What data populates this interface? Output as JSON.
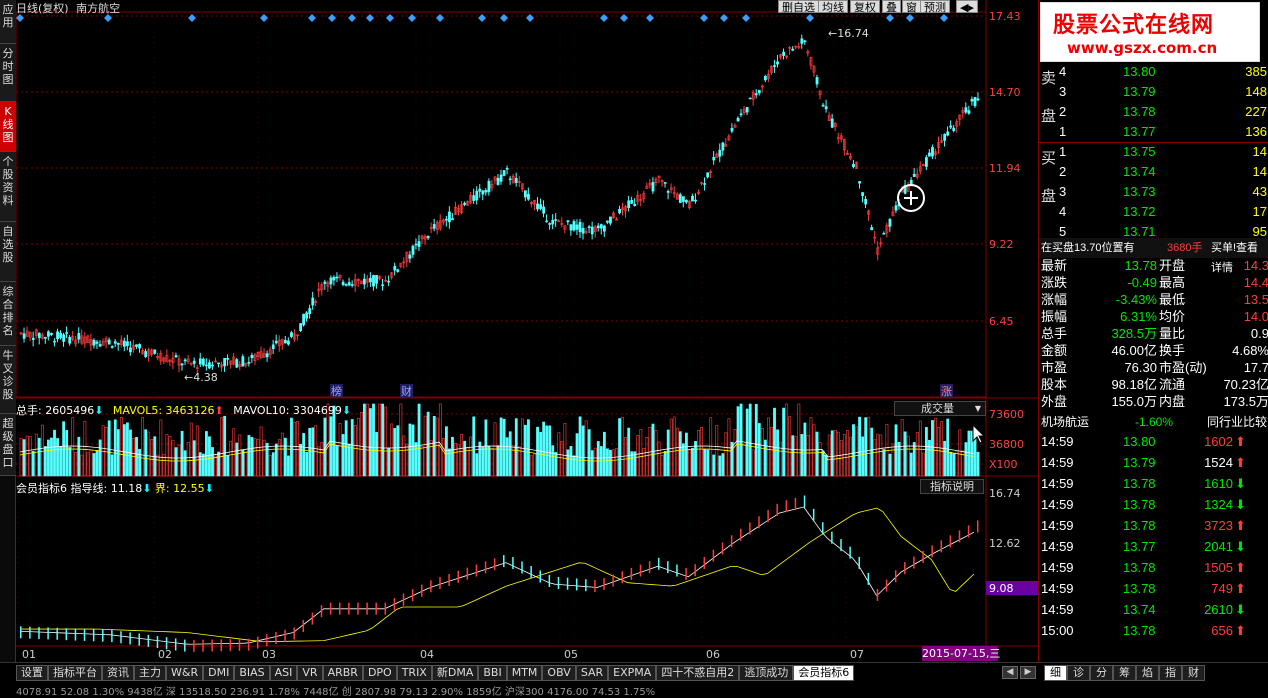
{
  "left_toolbar": [
    "应用",
    "分时图",
    "K线图",
    "个股资料",
    "自选股",
    "综合排名",
    "牛叉诊股",
    "超级盘口"
  ],
  "top": {
    "title": "日线(复权)",
    "stock": "南方航空",
    "buttons": [
      "删自选",
      "均线",
      "复权",
      "叠",
      "窗",
      "预测"
    ]
  },
  "chart_data": {
    "type": "candlestick",
    "price_axis": [
      "17.43",
      "14.70",
      "11.94",
      "9.22",
      "6.45"
    ],
    "months": [
      "01",
      "02",
      "03",
      "04",
      "05",
      "06",
      "07"
    ],
    "high_label": "16.74",
    "low_label": "4.38",
    "event_markers": [
      "榜",
      "财",
      "涨"
    ],
    "volume": {
      "label": "总手: 2605496",
      "ma5": "MAVOL5: 3463126",
      "ma10": "MAVOL10: 3304699",
      "axis": [
        "73600",
        "36800",
        "X100"
      ],
      "dropdown": "成交量"
    },
    "indicator": {
      "label": "会员指标6",
      "guide": "指导线: 11.18",
      "bound": "界: 12.55",
      "axis": [
        "16.74",
        "12.62",
        "9.08"
      ],
      "button": "指标说明",
      "label_marker": "8"
    },
    "date_label": "2015-07-15,三"
  },
  "right": {
    "logo": "股票公式在线网",
    "logo_url": "www.gszx.com.cn",
    "sell_label": "卖盘",
    "buy_label": "买盘",
    "sell": [
      [
        "4",
        "13.80",
        "385"
      ],
      [
        "3",
        "13.79",
        "148"
      ],
      [
        "2",
        "13.78",
        "227"
      ],
      [
        "1",
        "13.77",
        "136"
      ]
    ],
    "buy": [
      [
        "1",
        "13.75",
        "14"
      ],
      [
        "2",
        "13.74",
        "14"
      ],
      [
        "3",
        "13.73",
        "43"
      ],
      [
        "4",
        "13.72",
        "17"
      ],
      [
        "5",
        "13.71",
        "95"
      ]
    ],
    "msg": "在买盘13.70位置有",
    "msg_qty": "3680手",
    "msg_tail": "买单!查看详情",
    "stats": [
      [
        "最新",
        "13.78",
        "开盘",
        "14.3"
      ],
      [
        "涨跌",
        "-0.49",
        "最高",
        "14.4"
      ],
      [
        "涨幅",
        "-3.43%",
        "最低",
        "13.5"
      ],
      [
        "振幅",
        "6.31%",
        "均价",
        "14.0"
      ],
      [
        "总手",
        "328.5万",
        "量比",
        "0.9"
      ],
      [
        "金额",
        "46.00亿",
        "换手",
        "4.68%"
      ],
      [
        "市盈",
        "76.30",
        "市盈(动)",
        "17.7"
      ],
      [
        "股本",
        "98.18亿",
        "流通",
        "70.23亿"
      ],
      [
        "外盘",
        "155.0万",
        "内盘",
        "173.5万"
      ]
    ],
    "industry": "机场航运",
    "industry_pct": "-1.60%",
    "industry_btn": "同行业比较",
    "trades": [
      [
        "14:59",
        "13.80",
        "1602",
        "up"
      ],
      [
        "14:59",
        "13.79",
        "1524",
        "up"
      ],
      [
        "14:59",
        "13.78",
        "1610",
        "down"
      ],
      [
        "14:59",
        "13.78",
        "1324",
        "down"
      ],
      [
        "14:59",
        "13.78",
        "3723",
        "up"
      ],
      [
        "14:59",
        "13.77",
        "2041",
        "down"
      ],
      [
        "14:59",
        "13.78",
        "1505",
        "up"
      ],
      [
        "14:59",
        "13.78",
        "749",
        "up"
      ],
      [
        "14:59",
        "13.74",
        "2610",
        "down"
      ],
      [
        "15:00",
        "13.78",
        "656",
        "up"
      ]
    ]
  },
  "bottom_tabs": [
    "设置",
    "指标平台",
    "资讯",
    "主力",
    "W&R",
    "DMI",
    "BIAS",
    "ASI",
    "VR",
    "ARBR",
    "DPO",
    "TRIX",
    "新DMA",
    "BBI",
    "MTM",
    "OBV",
    "SAR",
    "EXPMA",
    "四十不惑自用2",
    "逃顶成功",
    "会员指标6"
  ],
  "bottom_right_tabs": [
    "细",
    "诊",
    "分",
    "筹",
    "焰",
    "指",
    "财"
  ],
  "ticker": "4078.91   52.08   1.30%   9438亿 深   13518.50   236.91   1.78%   7448亿 创   2807.98   79.13   2.90%   1859亿 沪深300   4176.00   74.53   1.75%"
}
